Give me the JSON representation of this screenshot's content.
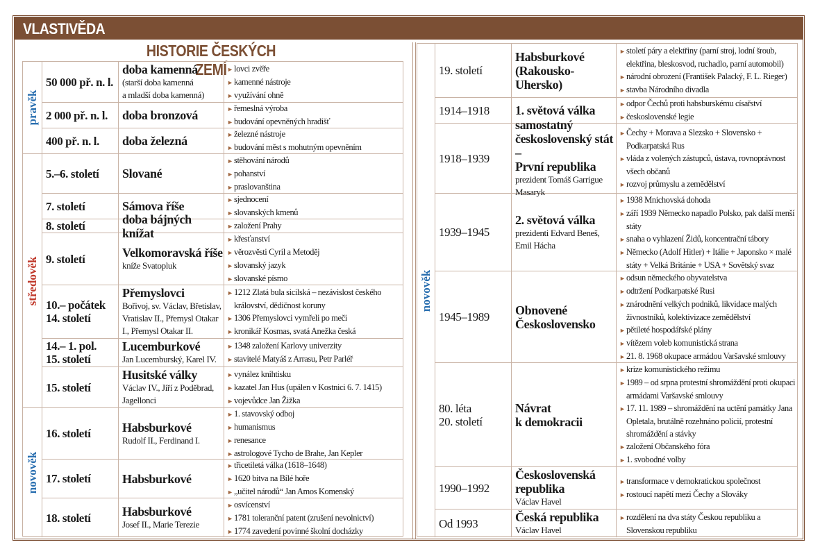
{
  "header": {
    "title": "VLASTIVĚDA"
  },
  "subtitle": "HISTORIE ČESKÝCH ZEMÍ",
  "colors": {
    "brand": "#7b4f34",
    "era_blue": "#2a6fb0",
    "era_red": "#c0392b",
    "bullet": "#a0663f"
  },
  "left": {
    "eras": [
      {
        "label": "pravěk",
        "color": "#2a6fb0",
        "rows": 3
      },
      {
        "label": "středověk",
        "color": "#c0392b",
        "rows": 7
      },
      {
        "label": "novověk",
        "color": "#2a6fb0",
        "rows": 3
      }
    ],
    "rows": [
      {
        "date": "50 000 př. n. l.",
        "name": "doba kamenná",
        "sub": "(starší doba kamenná\na mladší doba kamenná)",
        "bullets": [
          "lovci zvěře",
          "kamenné nástroje",
          "využívání ohně"
        ]
      },
      {
        "date": "2 000 př. n. l.",
        "name": "doba bronzová",
        "sub": "",
        "bullets": [
          "řemeslná výroba",
          "budování opevněných hradišť"
        ]
      },
      {
        "date": "400 př. n. l.",
        "name": "doba železná",
        "sub": "",
        "bullets": [
          "železné nástroje",
          "budování měst s mohutným opevněním"
        ]
      },
      {
        "date": "5.–6. století",
        "name": "Slované",
        "sub": "",
        "bullets": [
          "stěhování národů",
          "pohanství",
          "praslovanština"
        ]
      },
      {
        "date": "7. století",
        "name": "Sámova říše",
        "sub": "",
        "bullets": [
          "sjednocení",
          "slovanských kmenů"
        ]
      },
      {
        "date": "8. století",
        "name": "doba bájných knížat",
        "sub": "",
        "bullets": [
          "založení Prahy"
        ]
      },
      {
        "date": "9. století",
        "name": "Velkomoravská říše",
        "sub": "kníže Svatopluk",
        "bullets": [
          "křesťanství",
          "věrozvěsti Cyril a Metoděj",
          "slovanský jazyk",
          "slovanské písmo"
        ]
      },
      {
        "date": "10.– počátek\n14. století",
        "name": "Přemyslovci",
        "sub": "Bořivoj, sv. Václav, Břetislav,\nVratislav II., Přemysl Otakar\nI., Přemysl Otakar II.",
        "bullets": [
          "1212 Zlatá bula sicilská – nezávislost českého království, dědičnost koruny",
          "1306 Přemyslovci vymřeli po meči",
          "kronikář Kosmas, svatá Anežka česká"
        ]
      },
      {
        "date": "14.– 1. pol.\n15. století",
        "name": "Lucemburkové",
        "sub": "Jan Lucemburský, Karel IV.",
        "bullets": [
          "1348 založení Karlovy univerzity",
          "stavitelé Matyáš z Arrasu, Petr Parléř"
        ]
      },
      {
        "date": "15. století",
        "name": "Husitské války",
        "sub": "Václav IV., Jiří z Poděbrad,\nJagellonci",
        "bullets": [
          "vynález knihtisku",
          "kazatel Jan Hus (upálen v Kostnici 6. 7. 1415)",
          "vojevůdce Jan Žižka"
        ]
      },
      {
        "date": "16. století",
        "name": "Habsburkové",
        "sub": "Rudolf II., Ferdinand I.",
        "bullets": [
          "1. stavovský odboj",
          "humanismus",
          "renesance",
          "astrologové Tycho de Brahe, Jan Kepler"
        ]
      },
      {
        "date": "17. století",
        "name": "Habsburkové",
        "sub": "",
        "bullets": [
          "třicetiletá válka (1618–1648)",
          "1620 bitva na Bílé hoře",
          "„učitel národů“ Jan Amos Komenský"
        ]
      },
      {
        "date": "18. století",
        "name": "Habsburkové",
        "sub": "Josef II., Marie Terezie",
        "bullets": [
          "osvícenství",
          "1781 toleranční patent (zrušení nevolnictví)",
          "1774 zavedení povinné školní docházky"
        ]
      }
    ]
  },
  "right": {
    "eras": [
      {
        "label": "novověk",
        "color": "#2a6fb0",
        "rows": 8
      }
    ],
    "rows": [
      {
        "date": "19. století",
        "name": "Habsburkové\n(Rakousko-\nUhersko)",
        "sub": "",
        "bullets": [
          "století páry a elektřiny (parní stroj, lodní šroub, elektřina, bleskosvod, ruchadlo, parní automobil)",
          "národní obrození (František Palacký, F. L. Rieger)",
          "stavba Národního divadla"
        ]
      },
      {
        "date": "1914–1918",
        "name": "1. světová válka",
        "sub": "",
        "bullets": [
          "odpor Čechů proti habsburskému císařství",
          "československé legie"
        ]
      },
      {
        "date": "1918–1939",
        "name": "samostatný\nčeskoslovenský stát –\nPrvní republika",
        "sub": "prezident Tomáš Garrigue\nMasaryk",
        "bullets": [
          "Čechy + Morava a Slezsko + Slovensko + Podkarpatská Rus",
          "vláda z volených zástupců, ústava, rovnoprávnost všech občanů",
          "rozvoj průmyslu a zemědělství"
        ]
      },
      {
        "date": "1939–1945",
        "name": "2. světová válka",
        "sub": "prezidenti Edvard Beneš,\nEmil Hácha",
        "bullets": [
          "1938 Mnichovská dohoda",
          "září 1939 Německo napadlo Polsko, pak další menší státy",
          "snaha o vyhlazení Židů, koncentrační tábory",
          "Německo (Adolf Hitler) + Itálie + Japonsko × malé státy + Velká Británie + USA + Sovětský svaz"
        ]
      },
      {
        "date": "1945–1989",
        "name": "Obnovené\nČeskoslovensko",
        "sub": "",
        "bullets": [
          "odsun německého obyvatelstva",
          "odtržení Podkarpatské Rusi",
          "znárodnění velkých podniků, likvidace malých živnostníků, kolektivizace zemědělství",
          "pětileté hospodářské plány",
          "vítězem voleb komunistická strana",
          "21. 8. 1968 okupace armádou Varšavské smlouvy"
        ]
      },
      {
        "date": "80. léta\n20. století",
        "name": "Návrat\nk demokracii",
        "sub": "",
        "bullets": [
          "krize komunistického režimu",
          "1989 – od srpna protestní shromáždění proti okupaci armádami Varšavské smlouvy",
          "17. 11. 1989 – shromáždění na uctění památky Jana Opletala, brutálně rozehnáno policií, protestní shromáždění a stávky",
          "založení Občanského fóra",
          "1. svobodné volby"
        ]
      },
      {
        "date": "1990–1992",
        "name": "Československá\nrepublika",
        "sub": "Václav Havel",
        "bullets": [
          "transformace v demokratickou společnost",
          "rostoucí napětí mezi Čechy a Slováky"
        ]
      },
      {
        "date": "Od 1993",
        "name": "Česká republika",
        "sub": "Václav Havel",
        "bullets": [
          "rozdělení na dva státy Českou republiku a Slovenskou republiku"
        ]
      }
    ]
  }
}
